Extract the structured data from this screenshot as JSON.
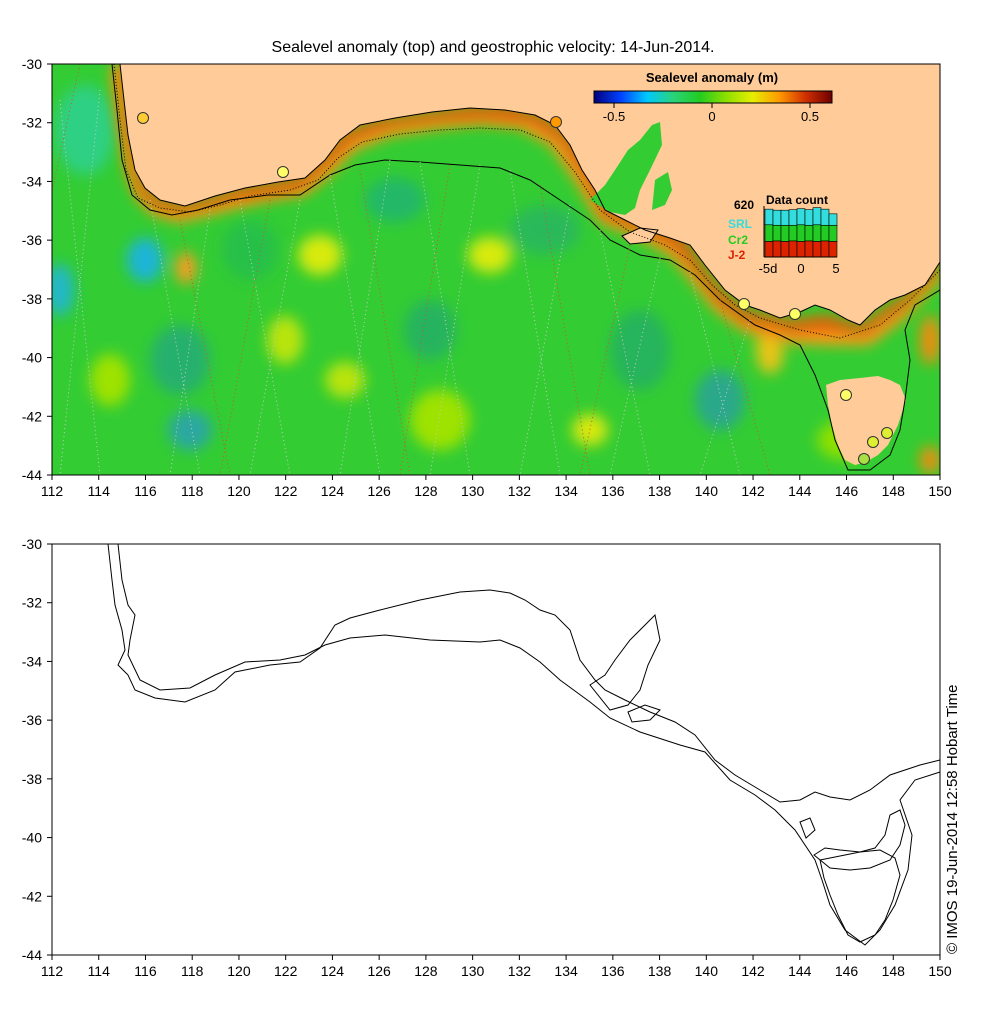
{
  "title": "Sealevel anomaly (top) and geostrophic velocity: 14-Jun-2014.",
  "top_panel": {
    "x_ticks": [
      "112",
      "114",
      "116",
      "118",
      "120",
      "122",
      "124",
      "126",
      "128",
      "130",
      "132",
      "134",
      "136",
      "138",
      "140",
      "142",
      "144",
      "146",
      "148",
      "150"
    ],
    "y_ticks": [
      "-30",
      "-32",
      "-34",
      "-36",
      "-38",
      "-40",
      "-42",
      "-44"
    ]
  },
  "bottom_panel": {
    "x_ticks": [
      "112",
      "114",
      "116",
      "118",
      "120",
      "122",
      "124",
      "126",
      "128",
      "130",
      "132",
      "134",
      "136",
      "138",
      "140",
      "142",
      "144",
      "146",
      "148",
      "150"
    ],
    "y_ticks": [
      "-30",
      "-32",
      "-34",
      "-36",
      "-38",
      "-40",
      "-42",
      "-44"
    ]
  },
  "colorbar": {
    "title": "Sealevel anomaly (m)",
    "labels": [
      "-0.5",
      "0",
      "0.5"
    ],
    "stops": [
      "#00007a",
      "#0040ff",
      "#00c8ff",
      "#2ad37a",
      "#22cc22",
      "#8ee000",
      "#e6ee00",
      "#ff9a00",
      "#d03000",
      "#6e0000"
    ]
  },
  "data_count": {
    "title": "Data count",
    "max_label": "620",
    "satellites": [
      {
        "name": "SRL",
        "color": "#33dddd"
      },
      {
        "name": "Cr2",
        "color": "#22cc22"
      },
      {
        "name": "J-2",
        "color": "#dd2200"
      }
    ],
    "x_labels": [
      "-5d",
      "0",
      "5"
    ],
    "bars": [
      {
        "j2": 0.3,
        "cr2": 0.32,
        "srl": 0.3
      },
      {
        "j2": 0.31,
        "cr2": 0.3,
        "srl": 0.29
      },
      {
        "j2": 0.3,
        "cr2": 0.31,
        "srl": 0.29
      },
      {
        "j2": 0.31,
        "cr2": 0.3,
        "srl": 0.3
      },
      {
        "j2": 0.3,
        "cr2": 0.32,
        "srl": 0.31
      },
      {
        "j2": 0.31,
        "cr2": 0.3,
        "srl": 0.3
      },
      {
        "j2": 0.3,
        "cr2": 0.32,
        "srl": 0.33
      },
      {
        "j2": 0.31,
        "cr2": 0.3,
        "srl": 0.31
      },
      {
        "j2": 0.3,
        "cr2": 0.31,
        "srl": 0.22
      }
    ]
  },
  "colors": {
    "land": "#ffcc99",
    "ocean_base": "#33cc33",
    "coast": "#000000"
  },
  "credit": "© IMOS 19-Jun-2014 12:58 Hobart Time"
}
